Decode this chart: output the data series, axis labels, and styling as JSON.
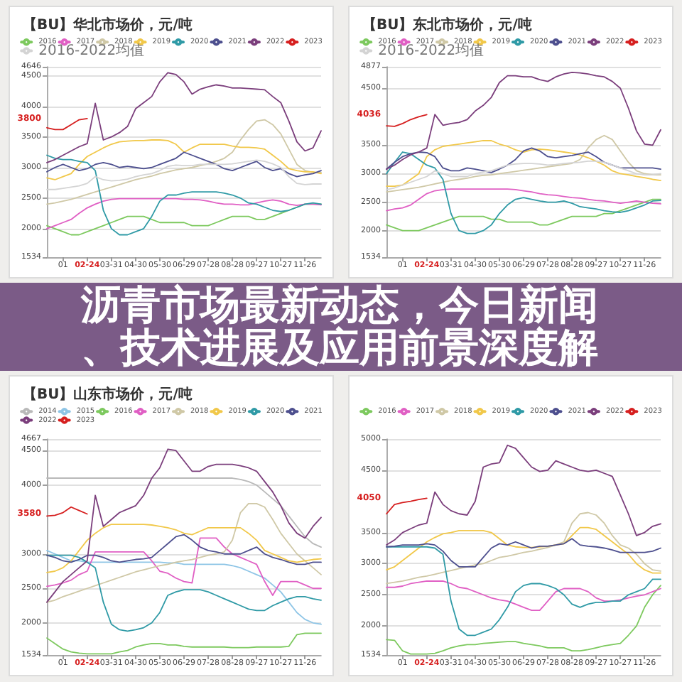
{
  "chart_data": [
    {
      "type": "line",
      "title": "【BU】华北市场价，元/吨",
      "categories": [
        null,
        null,
        "01",
        null,
        null,
        "02-24",
        null,
        null,
        "03-31",
        null,
        null,
        "04-30",
        null,
        null,
        "05-30",
        null,
        null,
        "06-29",
        null,
        null,
        "07-28",
        null,
        null,
        "08-28",
        null,
        null,
        "09-27",
        null,
        null,
        "10-27",
        null,
        null,
        "11-26",
        null,
        null
      ],
      "series": [
        {
          "name": "2016",
          "color": "#7dc95e",
          "values": [
            2050,
            2000,
            1950,
            1900,
            1900,
            1950,
            2000,
            2050,
            2100,
            2150,
            2200,
            2200,
            2200,
            2150,
            2100,
            2100,
            2100,
            2100,
            2050,
            2050,
            2050,
            2100,
            2150,
            2200,
            2200,
            2200,
            2150,
            2150,
            2200,
            2250,
            2300,
            2350,
            2400,
            2400,
            2400
          ]
        },
        {
          "name": "2017",
          "color": "#e05fc4",
          "values": [
            2000,
            2050,
            2100,
            2150,
            2250,
            2340,
            2400,
            2450,
            2480,
            2490,
            2490,
            2490,
            2490,
            2490,
            2490,
            2490,
            2490,
            2480,
            2480,
            2470,
            2450,
            2420,
            2400,
            2400,
            2390,
            2390,
            2420,
            2450,
            2470,
            2450,
            2400,
            2380,
            2400,
            2400,
            2390
          ]
        },
        {
          "name": "2018",
          "color": "#cfc8a6",
          "values": [
            2400,
            2420,
            2450,
            2480,
            2520,
            2560,
            2600,
            2640,
            2680,
            2720,
            2760,
            2800,
            2830,
            2860,
            2900,
            2930,
            2960,
            2980,
            3000,
            3030,
            3060,
            3100,
            3150,
            3250,
            3450,
            3620,
            3760,
            3780,
            3700,
            3550,
            3300,
            3050,
            2950,
            2920,
            2920
          ]
        },
        {
          "name": "2019",
          "color": "#f1c84a",
          "values": [
            2830,
            2800,
            2850,
            2900,
            3050,
            3180,
            3250,
            3320,
            3380,
            3420,
            3430,
            3440,
            3440,
            3450,
            3450,
            3440,
            3380,
            3250,
            3320,
            3380,
            3380,
            3380,
            3380,
            3350,
            3330,
            3330,
            3320,
            3300,
            3200,
            3100,
            2980,
            2950,
            2930,
            2930,
            2900
          ]
        },
        {
          "name": "2020",
          "color": "#2f9aa6",
          "values": [
            3200,
            3150,
            3130,
            3130,
            3100,
            3080,
            2950,
            2300,
            2000,
            1900,
            1900,
            1950,
            2000,
            2200,
            2450,
            2550,
            2550,
            2580,
            2600,
            2600,
            2600,
            2600,
            2580,
            2550,
            2500,
            2420,
            2400,
            2350,
            2300,
            2280,
            2300,
            2350,
            2400,
            2420,
            2400
          ]
        },
        {
          "name": "2021",
          "color": "#4d4f8e",
          "values": [
            2930,
            3000,
            3050,
            3000,
            2950,
            2980,
            3050,
            3080,
            3050,
            3000,
            3020,
            3000,
            2980,
            3000,
            3050,
            3100,
            3150,
            3250,
            3200,
            3150,
            3100,
            3050,
            2980,
            2950,
            3000,
            3050,
            3100,
            3000,
            2950,
            2980,
            2900,
            2850,
            2880,
            2900,
            2950
          ]
        },
        {
          "name": "2022",
          "color": "#7b3e7c",
          "values": [
            3080,
            3130,
            3200,
            3270,
            3340,
            3390,
            4050,
            3450,
            3500,
            3570,
            3670,
            3960,
            4060,
            4160,
            4400,
            4550,
            4520,
            4400,
            4200,
            4280,
            4320,
            4350,
            4330,
            4300,
            4300,
            4290,
            4280,
            4270,
            4160,
            4060,
            3760,
            3420,
            3270,
            3320,
            3600
          ]
        },
        {
          "name": "2023",
          "color": "#d61f1f",
          "values": [
            3650,
            3620,
            3620,
            3700,
            3780,
            3800,
            null,
            null,
            null,
            null,
            null,
            null,
            null,
            null,
            null,
            null,
            null,
            null,
            null,
            null,
            null,
            null,
            null,
            null,
            null,
            null,
            null,
            null,
            null,
            null,
            null,
            null,
            null,
            null,
            null
          ]
        },
        {
          "name": "2016-2022均值",
          "color": "#d4d4d4",
          "values": [
            2640,
            2640,
            2660,
            2680,
            2700,
            2740,
            2850,
            2800,
            2780,
            2790,
            2810,
            2850,
            2880,
            2900,
            2950,
            3020,
            3040,
            3030,
            3030,
            3050,
            3050,
            3050,
            3050,
            3060,
            3080,
            3100,
            3120,
            3100,
            3060,
            3000,
            2850,
            2740,
            2720,
            2730,
            2730
          ]
        }
      ],
      "ylim": [
        1534,
        4646
      ],
      "yticks": [
        1534,
        2000,
        2500,
        3000,
        3500,
        4000,
        4500,
        4646
      ],
      "grid": "y",
      "legend": "top",
      "annotations": [
        "3800"
      ]
    },
    {
      "type": "line",
      "title": "【BU】东北市场价，元/吨",
      "categories": [
        null,
        null,
        "01",
        null,
        null,
        "02-24",
        null,
        null,
        "03-31",
        null,
        null,
        "04-30",
        null,
        null,
        "05-30",
        null,
        null,
        "06-29",
        null,
        null,
        "07-28",
        null,
        null,
        "08-28",
        null,
        null,
        "09-27",
        null,
        null,
        "10-27",
        null,
        null,
        "11-26",
        null,
        null
      ],
      "series": [
        {
          "name": "2016",
          "color": "#7dc95e",
          "values": [
            2100,
            2050,
            2000,
            2000,
            2000,
            2050,
            2100,
            2150,
            2200,
            2250,
            2250,
            2250,
            2250,
            2200,
            2200,
            2150,
            2150,
            2150,
            2150,
            2100,
            2100,
            2150,
            2200,
            2250,
            2250,
            2250,
            2250,
            2300,
            2300,
            2350,
            2400,
            2450,
            2500,
            2550,
            2550
          ]
        },
        {
          "name": "2017",
          "color": "#e05fc4",
          "values": [
            2350,
            2380,
            2400,
            2450,
            2550,
            2650,
            2700,
            2720,
            2730,
            2730,
            2730,
            2730,
            2730,
            2730,
            2730,
            2730,
            2720,
            2700,
            2680,
            2650,
            2630,
            2620,
            2600,
            2580,
            2570,
            2550,
            2530,
            2520,
            2500,
            2480,
            2500,
            2520,
            2500,
            2480,
            2470
          ]
        },
        {
          "name": "2018",
          "color": "#cfc8a6",
          "values": [
            2680,
            2700,
            2720,
            2740,
            2760,
            2790,
            2820,
            2850,
            2880,
            2900,
            2920,
            2950,
            2970,
            2980,
            3000,
            3020,
            3040,
            3060,
            3080,
            3100,
            3120,
            3140,
            3160,
            3180,
            3250,
            3450,
            3600,
            3670,
            3600,
            3400,
            3200,
            3050,
            3000,
            2980,
            2980
          ]
        },
        {
          "name": "2019",
          "color": "#f1c84a",
          "values": [
            2780,
            2780,
            2800,
            2900,
            3000,
            3300,
            3420,
            3480,
            3500,
            3520,
            3540,
            3560,
            3580,
            3580,
            3520,
            3480,
            3420,
            3380,
            3420,
            3430,
            3420,
            3400,
            3380,
            3360,
            3330,
            3280,
            3220,
            3150,
            3050,
            3000,
            2980,
            2950,
            2930,
            2900,
            2880
          ]
        },
        {
          "name": "2020",
          "color": "#2f9aa6",
          "values": [
            3000,
            3200,
            3380,
            3350,
            3250,
            3150,
            3100,
            2900,
            2300,
            2000,
            1950,
            1950,
            2000,
            2100,
            2300,
            2450,
            2550,
            2580,
            2550,
            2520,
            2500,
            2500,
            2520,
            2480,
            2420,
            2400,
            2380,
            2350,
            2330,
            2320,
            2350,
            2400,
            2450,
            2520,
            2530
          ]
        },
        {
          "name": "2021",
          "color": "#4d4f8e",
          "values": [
            3080,
            3200,
            3300,
            3350,
            3380,
            3370,
            3300,
            3100,
            3050,
            3050,
            3100,
            3080,
            3050,
            3020,
            3080,
            3150,
            3250,
            3400,
            3450,
            3400,
            3300,
            3280,
            3300,
            3320,
            3350,
            3380,
            3300,
            3200,
            3150,
            3100,
            3100,
            3100,
            3100,
            3100,
            3080
          ]
        },
        {
          "name": "2022",
          "color": "#7b3e7c",
          "values": [
            3080,
            3150,
            3250,
            3330,
            3380,
            3450,
            4040,
            3850,
            3880,
            3900,
            3950,
            4100,
            4200,
            4340,
            4600,
            4720,
            4720,
            4700,
            4700,
            4650,
            4620,
            4700,
            4750,
            4780,
            4770,
            4750,
            4720,
            4700,
            4620,
            4500,
            4150,
            3750,
            3520,
            3500,
            3770
          ]
        },
        {
          "name": "2023",
          "color": "#d61f1f",
          "values": [
            3840,
            3830,
            3880,
            3950,
            4000,
            4036,
            null,
            null,
            null,
            null,
            null,
            null,
            null,
            null,
            null,
            null,
            null,
            null,
            null,
            null,
            null,
            null,
            null,
            null,
            null,
            null,
            null,
            null,
            null,
            null,
            null,
            null,
            null,
            null,
            null
          ]
        },
        {
          "name": "2016-2022均值",
          "color": "#d4d4d4",
          "values": [
            2720,
            2750,
            2800,
            2850,
            2900,
            2950,
            3050,
            3000,
            2950,
            2950,
            2950,
            3000,
            3030,
            3050,
            3100,
            3150,
            3170,
            3180,
            3180,
            3170,
            3150,
            3160,
            3180,
            3190,
            3200,
            3220,
            3220,
            3200,
            3150,
            3100,
            3050,
            3000,
            2980,
            2980,
            3000
          ]
        }
      ],
      "ylim": [
        1534,
        4877
      ],
      "yticks": [
        1534,
        2000,
        2500,
        3000,
        3500,
        4500,
        4877
      ],
      "grid": "y",
      "legend": "top",
      "annotations": [
        "4036"
      ]
    },
    {
      "type": "other",
      "title": "沥青市场最新动态，今日新闻、技术进展及应用前景深度解"
    },
    {
      "type": "line",
      "title": "【BU】山东市场价，元/吨",
      "categories": [
        null,
        null,
        "01",
        null,
        null,
        "02-24",
        null,
        null,
        "03-31",
        null,
        null,
        "04-30",
        null,
        null,
        "05-30",
        null,
        null,
        "06-29",
        null,
        null,
        "07-28",
        null,
        null,
        "08-28",
        null,
        null,
        "09-27",
        null,
        null,
        "10-27",
        null,
        null,
        "11-26",
        null,
        null
      ],
      "series": [
        {
          "name": "2014",
          "color": "#b9b9b9",
          "values": [
            4100,
            4100,
            4100,
            4100,
            4100,
            4100,
            4100,
            4100,
            4100,
            4100,
            4100,
            4100,
            4100,
            4100,
            4100,
            4100,
            4100,
            4100,
            4100,
            4100,
            4100,
            4100,
            4100,
            4100,
            4080,
            4050,
            4000,
            3900,
            3800,
            3700,
            3550,
            3400,
            3250,
            3150,
            3100
          ]
        },
        {
          "name": "2015",
          "color": "#8ec5e6",
          "values": [
            3050,
            3000,
            2950,
            2900,
            2900,
            2880,
            2880,
            2880,
            2880,
            2880,
            2880,
            2880,
            2880,
            2880,
            2880,
            2870,
            2870,
            2850,
            2850,
            2850,
            2850,
            2850,
            2850,
            2830,
            2800,
            2750,
            2700,
            2650,
            2550,
            2450,
            2300,
            2150,
            2050,
            2000,
            1980
          ]
        },
        {
          "name": "2016",
          "color": "#7dc95e",
          "values": [
            1780,
            1700,
            1620,
            1580,
            1560,
            1550,
            1550,
            1550,
            1550,
            1580,
            1600,
            1650,
            1680,
            1700,
            1700,
            1680,
            1680,
            1660,
            1650,
            1650,
            1650,
            1650,
            1650,
            1640,
            1640,
            1640,
            1650,
            1650,
            1650,
            1650,
            1660,
            1830,
            1850,
            1850,
            1850
          ]
        },
        {
          "name": "2017",
          "color": "#e05fc4",
          "values": [
            2530,
            2550,
            2580,
            2620,
            2700,
            2750,
            3030,
            3030,
            3030,
            3030,
            3030,
            3030,
            3030,
            2900,
            2750,
            2720,
            2650,
            2600,
            2580,
            3230,
            3230,
            3230,
            3100,
            3000,
            2950,
            2900,
            2850,
            2600,
            2400,
            2600,
            2600,
            2600,
            2550,
            2500,
            2500
          ]
        },
        {
          "name": "2018",
          "color": "#cfc8a6",
          "values": [
            2300,
            2330,
            2380,
            2420,
            2460,
            2500,
            2540,
            2580,
            2620,
            2660,
            2700,
            2740,
            2770,
            2800,
            2830,
            2850,
            2880,
            2900,
            2920,
            2950,
            2980,
            3000,
            3030,
            3200,
            3600,
            3730,
            3730,
            3680,
            3500,
            3300,
            3150,
            3000,
            2900,
            2800,
            2700
          ]
        },
        {
          "name": "2019",
          "color": "#f1c84a",
          "values": [
            2730,
            2750,
            2800,
            2900,
            3050,
            3200,
            3300,
            3380,
            3430,
            3430,
            3430,
            3430,
            3430,
            3420,
            3400,
            3380,
            3350,
            3300,
            3280,
            3330,
            3380,
            3380,
            3380,
            3380,
            3380,
            3300,
            3200,
            3050,
            3000,
            2950,
            2900,
            2880,
            2900,
            2920,
            2930
          ]
        },
        {
          "name": "2020",
          "color": "#2f9aa6",
          "values": [
            2980,
            2980,
            2980,
            2980,
            2950,
            2880,
            2800,
            2300,
            1980,
            1900,
            1880,
            1900,
            1930,
            2000,
            2150,
            2400,
            2450,
            2480,
            2480,
            2480,
            2450,
            2400,
            2350,
            2300,
            2250,
            2200,
            2180,
            2180,
            2250,
            2300,
            2350,
            2380,
            2380,
            2350,
            2330
          ]
        },
        {
          "name": "2021",
          "color": "#4d4f8e",
          "values": [
            2980,
            2950,
            2900,
            2880,
            2920,
            2980,
            2980,
            2950,
            2900,
            2880,
            2900,
            2920,
            2930,
            2950,
            3050,
            3150,
            3250,
            3280,
            3200,
            3100,
            3050,
            3030,
            3000,
            3000,
            3000,
            3050,
            3100,
            3000,
            2950,
            2920,
            2880,
            2850,
            2850,
            2880,
            2880
          ]
        },
        {
          "name": "2022",
          "color": "#7b3e7c",
          "values": [
            2300,
            2450,
            2600,
            2700,
            2800,
            2900,
            3850,
            3400,
            3500,
            3600,
            3650,
            3700,
            3850,
            4100,
            4250,
            4520,
            4500,
            4350,
            4200,
            4200,
            4270,
            4300,
            4300,
            4300,
            4280,
            4250,
            4200,
            4050,
            3900,
            3700,
            3450,
            3300,
            3230,
            3400,
            3530
          ]
        },
        {
          "name": "2023",
          "color": "#d61f1f",
          "values": [
            3550,
            3560,
            3600,
            3680,
            3630,
            3580,
            null,
            null,
            null,
            null,
            null,
            null,
            null,
            null,
            null,
            null,
            null,
            null,
            null,
            null,
            null,
            null,
            null,
            null,
            null,
            null,
            null,
            null,
            null,
            null,
            null,
            null,
            null,
            null,
            null
          ]
        }
      ],
      "ylim": [
        1534,
        4667
      ],
      "yticks": [
        1534,
        2000,
        2500,
        3000,
        4000,
        4500,
        4667
      ],
      "grid": "y",
      "legend": "top",
      "annotations": [
        "3580"
      ]
    },
    {
      "type": "line",
      "categories": [
        null,
        null,
        "01",
        null,
        null,
        "02-24",
        null,
        null,
        "03-31",
        null,
        null,
        "04-30",
        null,
        null,
        "05-30",
        null,
        null,
        "06-29",
        null,
        null,
        "07-28",
        null,
        null,
        "08-28",
        null,
        null,
        "09-27",
        null,
        null,
        "10-27",
        null,
        null,
        "11-26",
        null,
        null
      ],
      "series": [
        {
          "name": "2016",
          "color": "#7dc95e",
          "values": [
            1780,
            1770,
            1600,
            1550,
            1550,
            1550,
            1560,
            1600,
            1650,
            1680,
            1700,
            1700,
            1720,
            1730,
            1740,
            1750,
            1750,
            1720,
            1700,
            1680,
            1650,
            1650,
            1650,
            1600,
            1600,
            1620,
            1650,
            1680,
            1700,
            1720,
            1850,
            2000,
            2300,
            2500,
            2650
          ]
        },
        {
          "name": "2017",
          "color": "#e05fc4",
          "values": [
            2620,
            2620,
            2640,
            2680,
            2700,
            2720,
            2720,
            2720,
            2680,
            2620,
            2600,
            2550,
            2500,
            2450,
            2420,
            2400,
            2350,
            2300,
            2250,
            2250,
            2400,
            2550,
            2600,
            2600,
            2600,
            2550,
            2450,
            2400,
            2400,
            2420,
            2450,
            2480,
            2500,
            2550,
            2600
          ]
        },
        {
          "name": "2018",
          "color": "#cfc8a6",
          "values": [
            2680,
            2700,
            2720,
            2750,
            2780,
            2800,
            2830,
            2860,
            2890,
            2920,
            2950,
            2980,
            3000,
            3050,
            3100,
            3120,
            3150,
            3180,
            3200,
            3230,
            3260,
            3300,
            3350,
            3650,
            3800,
            3820,
            3780,
            3650,
            3450,
            3300,
            3250,
            3150,
            3000,
            2900,
            2880
          ]
        },
        {
          "name": "2019",
          "color": "#f1c84a",
          "values": [
            2900,
            2950,
            3050,
            3150,
            3250,
            3350,
            3420,
            3480,
            3500,
            3530,
            3530,
            3530,
            3530,
            3500,
            3400,
            3300,
            3270,
            3260,
            3260,
            3270,
            3280,
            3300,
            3320,
            3450,
            3580,
            3580,
            3550,
            3450,
            3350,
            3250,
            3150,
            3000,
            2900,
            2850,
            2850
          ]
        },
        {
          "name": "2020",
          "color": "#2f9aa6",
          "values": [
            3270,
            3270,
            3270,
            3270,
            3270,
            3270,
            3250,
            3150,
            2400,
            1950,
            1850,
            1850,
            1900,
            1950,
            2100,
            2300,
            2550,
            2650,
            2680,
            2680,
            2650,
            2600,
            2500,
            2350,
            2300,
            2350,
            2380,
            2380,
            2400,
            2400,
            2500,
            2550,
            2600,
            2750,
            2750
          ]
        },
        {
          "name": "2021",
          "color": "#4d4f8e",
          "values": [
            3270,
            3280,
            3300,
            3300,
            3300,
            3320,
            3300,
            3200,
            3050,
            2950,
            2950,
            2950,
            3100,
            3250,
            3320,
            3300,
            3350,
            3300,
            3250,
            3280,
            3280,
            3300,
            3320,
            3400,
            3300,
            3280,
            3270,
            3250,
            3220,
            3180,
            3180,
            3180,
            3180,
            3200,
            3250
          ]
        },
        {
          "name": "2022",
          "color": "#7b3e7c",
          "values": [
            3300,
            3380,
            3500,
            3560,
            3620,
            3650,
            4150,
            3950,
            3850,
            3800,
            3780,
            4000,
            4550,
            4600,
            4620,
            4900,
            4850,
            4700,
            4550,
            4480,
            4500,
            4650,
            4600,
            4550,
            4500,
            4480,
            4500,
            4450,
            4400,
            4100,
            3800,
            3450,
            3500,
            3600,
            3640
          ]
        },
        {
          "name": "2023",
          "color": "#d61f1f",
          "values": [
            3800,
            3950,
            3980,
            4000,
            4030,
            4050,
            null,
            null,
            null,
            null,
            null,
            null,
            null,
            null,
            null,
            null,
            null,
            null,
            null,
            null,
            null,
            null,
            null,
            null,
            null,
            null,
            null,
            null,
            null,
            null,
            null,
            null,
            null,
            null,
            null
          ]
        }
      ],
      "ylim": [
        1534,
        5000
      ],
      "yticks": [
        1534,
        2000,
        2500,
        3000,
        3500,
        4500,
        5000
      ],
      "grid": "y",
      "legend": "top",
      "annotations": [
        "4050"
      ]
    }
  ]
}
